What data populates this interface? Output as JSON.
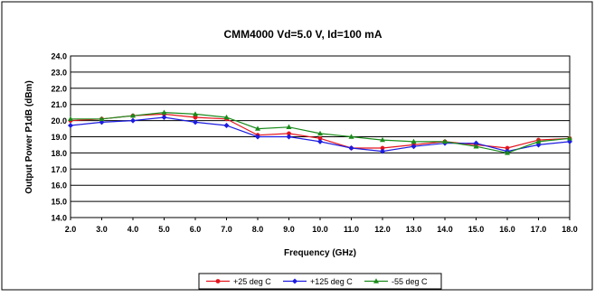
{
  "chart_data": {
    "type": "line",
    "title": "CMM4000 Vd=5.0 V, Id=100 mA",
    "xlabel": "Frequency (GHz)",
    "ylabel": "Output Power P1dB (dBm)",
    "xlim": [
      2.0,
      18.0
    ],
    "ylim": [
      14.0,
      24.0
    ],
    "x_ticks": [
      "2.0",
      "3.0",
      "4.0",
      "5.0",
      "6.0",
      "7.0",
      "8.0",
      "9.0",
      "10.0",
      "11.0",
      "12.0",
      "13.0",
      "14.0",
      "15.0",
      "16.0",
      "17.0",
      "18.0"
    ],
    "y_ticks": [
      "14.0",
      "15.0",
      "16.0",
      "17.0",
      "18.0",
      "19.0",
      "20.0",
      "21.0",
      "22.0",
      "23.0",
      "24.0"
    ],
    "grid": "horizontal",
    "legend_position": "bottom",
    "x": [
      2,
      3,
      4,
      5,
      6,
      7,
      8,
      9,
      10,
      11,
      12,
      13,
      14,
      15,
      16,
      17,
      18
    ],
    "series": [
      {
        "name": "+25 deg C",
        "color": "#e4141e",
        "marker": "circle",
        "values": [
          20.0,
          20.1,
          20.3,
          20.4,
          20.2,
          20.1,
          19.1,
          19.2,
          18.9,
          18.3,
          18.3,
          18.5,
          18.7,
          18.5,
          18.3,
          18.8,
          18.9
        ]
      },
      {
        "name": "+125 deg C",
        "color": "#1c1ce0",
        "marker": "diamond",
        "values": [
          19.7,
          19.9,
          20.0,
          20.2,
          19.9,
          19.7,
          19.0,
          19.0,
          18.7,
          18.3,
          18.1,
          18.4,
          18.6,
          18.6,
          18.1,
          18.5,
          18.7
        ]
      },
      {
        "name": "-55 deg C",
        "color": "#1a8a1a",
        "marker": "triangle",
        "values": [
          20.1,
          20.1,
          20.3,
          20.5,
          20.4,
          20.2,
          19.5,
          19.6,
          19.2,
          19.0,
          18.8,
          18.7,
          18.7,
          18.4,
          18.0,
          18.7,
          18.9
        ]
      }
    ]
  }
}
